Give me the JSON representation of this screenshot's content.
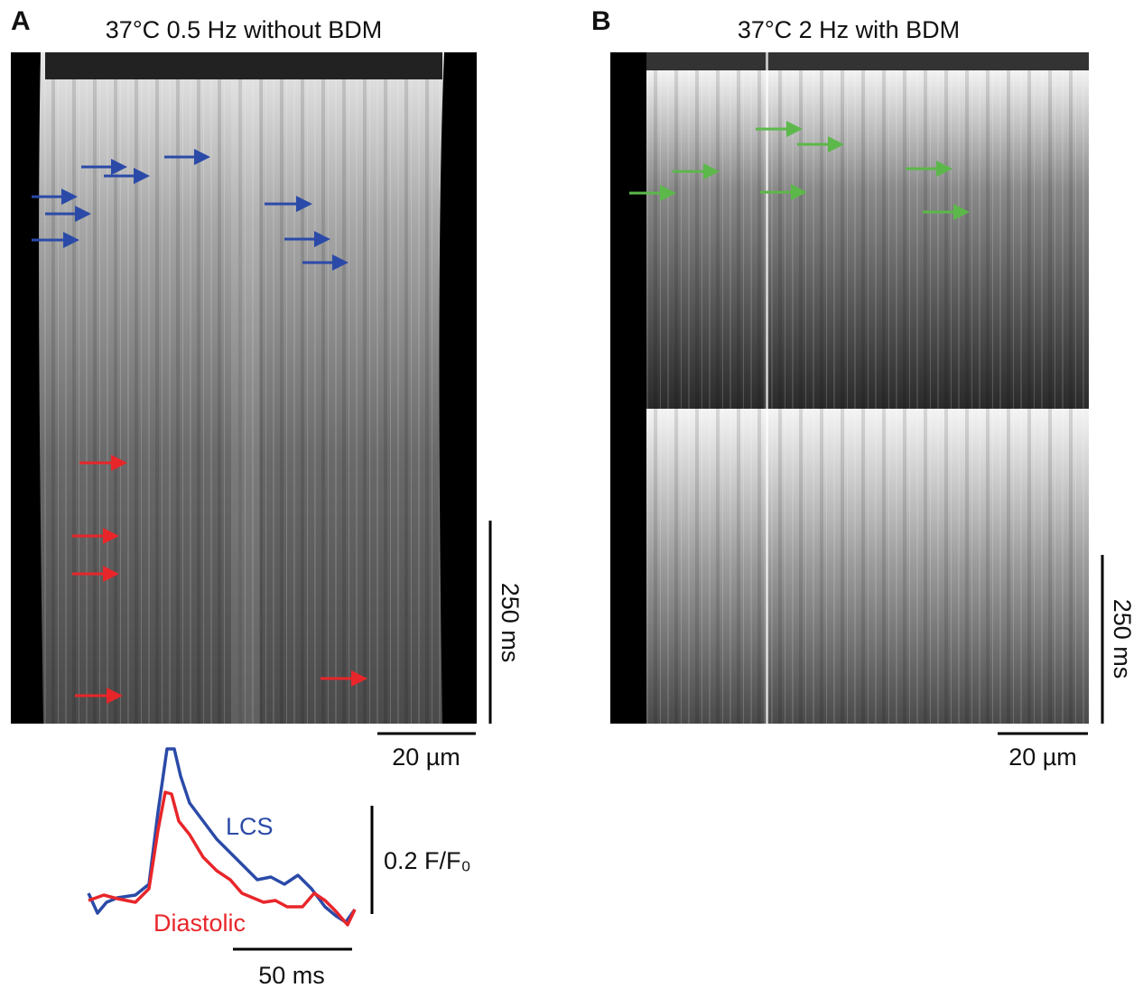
{
  "panels": [
    {
      "label": "A",
      "title": "37°C 0.5 Hz without BDM",
      "time_scale": "250 ms",
      "space_scale": "20 µm"
    },
    {
      "label": "B",
      "title": "37°C 2 Hz with BDM",
      "time_scale": "250 ms",
      "space_scale": "20 µm"
    }
  ],
  "traces": {
    "series": [
      "LCS",
      "Diastolic"
    ],
    "amplitude_scale": "0.2 F/F₀",
    "time_scale": "50 ms"
  }
}
